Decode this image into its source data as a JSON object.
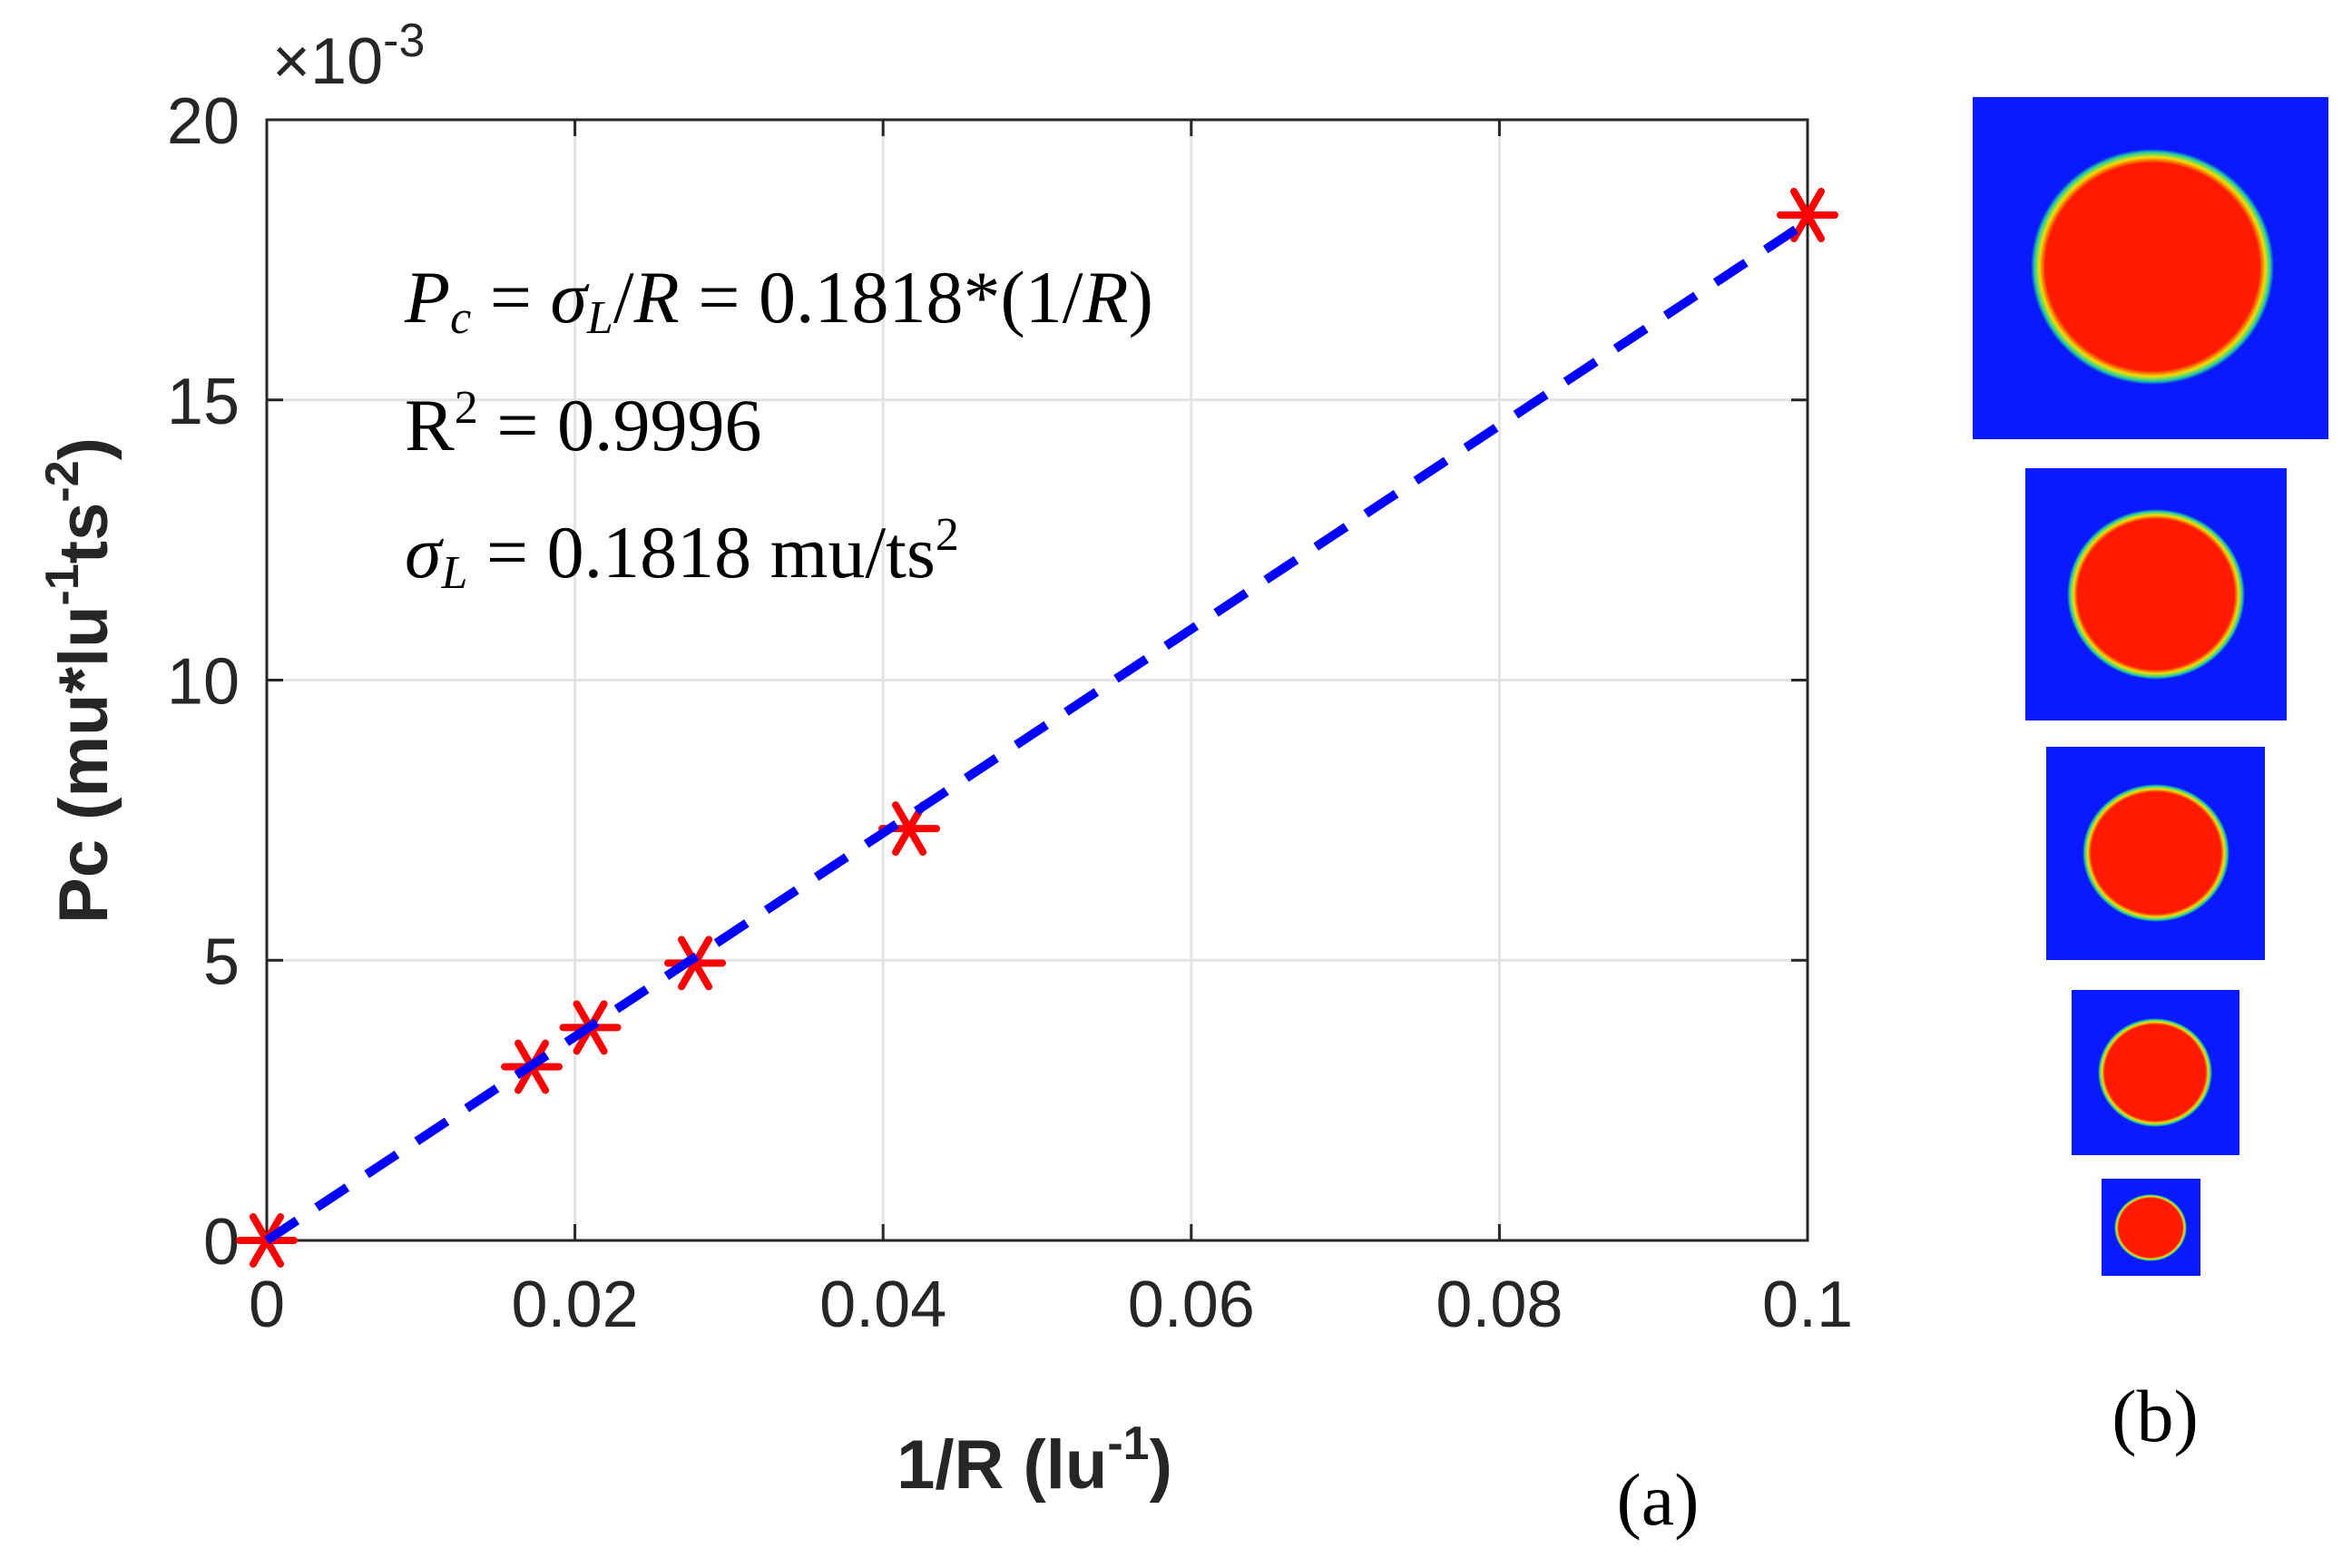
{
  "chart_data": {
    "type": "scatter",
    "xlabel": [
      "1/R (lu",
      "-1",
      ")"
    ],
    "ylabel": [
      "Pc (mu*lu",
      "-1",
      "ts",
      "-2",
      ")"
    ],
    "y_multiplier": [
      "×10",
      "-3"
    ],
    "x": [
      0,
      0.0172,
      0.021,
      0.0278,
      0.0417,
      0.1
    ],
    "series": [
      {
        "color": "#ff0000",
        "marker": "asterisk",
        "x": [
          0,
          0.0172,
          0.021,
          0.0278,
          0.0417,
          0.1
        ],
        "values": [
          0,
          3.1,
          3.8,
          4.95,
          7.35,
          18.3
        ]
      },
      {
        "color": "#0000ff",
        "style": "dashed",
        "x": [
          0,
          0.1
        ],
        "values": [
          0,
          18.18
        ]
      }
    ],
    "xlim": [
      0,
      0.1
    ],
    "ylim": [
      0,
      20
    ],
    "xticks": [
      0,
      0.02,
      0.04,
      0.06,
      0.08,
      0.1
    ],
    "yticks": [
      0,
      5,
      10,
      15,
      20
    ],
    "grid": true,
    "annotations": [
      [
        "P",
        "c",
        " = ",
        "σ",
        "L",
        "/",
        "R",
        " = 0.1818*(1/",
        "R",
        ")"
      ],
      [
        "R",
        "2",
        " = 0.9996"
      ],
      [
        "σ",
        "L",
        " = 0.1818 mu/ts",
        "2"
      ]
    ],
    "panel_labels": [
      "(a)",
      "(b)"
    ]
  }
}
